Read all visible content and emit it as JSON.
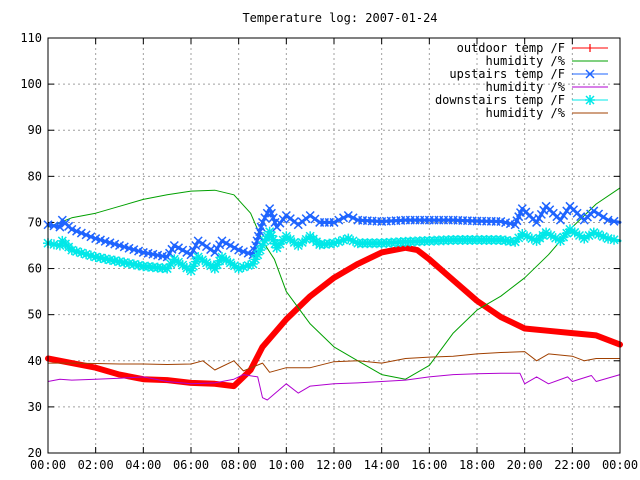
{
  "chart_data": {
    "type": "line",
    "title": "Temperature log: 2007-01-24",
    "xlabel": "",
    "ylabel": "",
    "x_ticks": [
      "00:00",
      "02:00",
      "04:00",
      "06:00",
      "08:00",
      "10:00",
      "12:00",
      "14:00",
      "16:00",
      "18:00",
      "20:00",
      "22:00",
      "00:00"
    ],
    "y_ticks": [
      "20",
      "30",
      "40",
      "50",
      "60",
      "70",
      "80",
      "90",
      "100",
      "110"
    ],
    "xlim": [
      0,
      24
    ],
    "ylim": [
      20,
      110
    ],
    "grid": true,
    "legend_position": "top-right",
    "series": [
      {
        "name": "outdoor temp /F",
        "color": "#ff0000",
        "style": "thick",
        "x": [
          0,
          1,
          2,
          3,
          4,
          5,
          6,
          7,
          7.8,
          8.5,
          9,
          10,
          11,
          12,
          13,
          14,
          15,
          15.5,
          16,
          17,
          18,
          19,
          20,
          21,
          22,
          23,
          24
        ],
        "y": [
          40.5,
          39.5,
          38.5,
          37,
          36,
          35.8,
          35.2,
          35,
          34.5,
          38,
          43,
          49,
          54,
          58,
          61,
          63.5,
          64.5,
          64,
          62,
          57.5,
          53,
          49.5,
          47,
          46.5,
          46,
          45.5,
          43.5
        ]
      },
      {
        "name": "humidity /%",
        "color": "#00a000",
        "style": "thin",
        "x": [
          0,
          1,
          2,
          3,
          4,
          5,
          6,
          7,
          7.8,
          8.5,
          9,
          9.5,
          10,
          11,
          12,
          13,
          14,
          15,
          16,
          17,
          18,
          19,
          20,
          21,
          22,
          23,
          24
        ],
        "y": [
          69,
          71,
          72,
          73.5,
          75,
          76,
          76.8,
          77,
          76,
          72,
          66,
          62,
          55,
          48,
          43,
          40,
          37,
          36,
          39,
          46,
          51,
          54,
          58,
          63,
          69,
          74,
          77.5
        ]
      },
      {
        "name": "upstairs temp /F",
        "color": "#1e64ff",
        "style": "markers",
        "x": [
          0,
          0.5,
          0.6,
          1,
          2,
          3,
          4,
          5,
          5.3,
          6,
          6.3,
          7,
          7.3,
          8,
          8.6,
          9,
          9.3,
          9.6,
          10,
          10.5,
          11,
          11.4,
          12,
          12.6,
          13,
          14,
          15,
          16,
          17,
          18,
          19,
          19.6,
          19.9,
          20.5,
          20.9,
          21.5,
          21.9,
          22.5,
          22.9,
          23.5,
          24
        ],
        "y": [
          69.5,
          69,
          70.5,
          68.5,
          66.5,
          65,
          63.5,
          62.5,
          65,
          63,
          66,
          63.5,
          66,
          64,
          63,
          70,
          73,
          69,
          71.5,
          69.5,
          71.5,
          70,
          70,
          71.5,
          70.5,
          70.2,
          70.5,
          70.5,
          70.5,
          70.3,
          70.2,
          69.5,
          73,
          70,
          73.5,
          70.5,
          73.5,
          70.5,
          72.5,
          70.5,
          70
        ]
      },
      {
        "name": "humidity /%",
        "color": "#b000d0",
        "style": "thin",
        "x": [
          0,
          0.5,
          1,
          2,
          3,
          4,
          5,
          6,
          7,
          7.8,
          8.2,
          8.8,
          9,
          9.2,
          10,
          10.5,
          11,
          12,
          13,
          14,
          15,
          16,
          17,
          18,
          19,
          19.8,
          20,
          20.5,
          21,
          21.8,
          22,
          22.8,
          23,
          24
        ],
        "y": [
          35.5,
          36,
          35.8,
          36,
          36.2,
          36.5,
          35.5,
          35,
          35.2,
          36,
          37,
          36.5,
          32,
          31.5,
          35,
          33,
          34.5,
          35,
          35.2,
          35.5,
          35.8,
          36.5,
          37,
          37.2,
          37.3,
          37.3,
          35,
          36.5,
          35,
          36.5,
          35.5,
          36.8,
          35.5,
          37
        ]
      },
      {
        "name": "downstairs temp /F",
        "color": "#00e8e8",
        "style": "markers",
        "x": [
          0,
          0.5,
          0.6,
          1,
          2,
          3,
          4,
          5,
          5.3,
          6,
          6.3,
          7,
          7.3,
          8,
          8.6,
          9,
          9.3,
          9.6,
          10,
          10.5,
          11,
          11.4,
          12,
          12.6,
          13,
          14,
          15,
          16,
          17,
          18,
          19,
          19.6,
          19.9,
          20.5,
          20.9,
          21.5,
          21.9,
          22.5,
          22.9,
          23.5,
          24
        ],
        "y": [
          65.5,
          65,
          66,
          64,
          62.5,
          61.5,
          60.5,
          60,
          62,
          59.5,
          62.5,
          60,
          62.5,
          60,
          61,
          65,
          68,
          64.5,
          67,
          65,
          67,
          65.2,
          65.5,
          66.5,
          65.5,
          65.5,
          65.8,
          66,
          66.2,
          66.2,
          66.2,
          65.8,
          67.5,
          66,
          67.8,
          66,
          68.5,
          66.5,
          67.8,
          66.5,
          66
        ]
      },
      {
        "name": "humidity /%",
        "color": "#a04000",
        "style": "thin",
        "x": [
          0,
          1,
          2,
          3,
          4,
          5,
          6,
          6.5,
          7,
          7.8,
          8.2,
          9,
          9.3,
          10,
          11,
          12,
          13,
          14,
          15,
          16,
          17,
          18,
          19,
          20,
          20.5,
          21,
          22,
          22.5,
          23,
          24
        ],
        "y": [
          39.5,
          39.5,
          39.4,
          39.3,
          39.3,
          39.2,
          39.3,
          40,
          38,
          40,
          37.8,
          39.5,
          37.5,
          38.5,
          38.5,
          39.8,
          40,
          39.5,
          40.5,
          40.8,
          41,
          41.5,
          41.8,
          42,
          40,
          41.5,
          41,
          40,
          40.5,
          40.5
        ]
      }
    ]
  }
}
